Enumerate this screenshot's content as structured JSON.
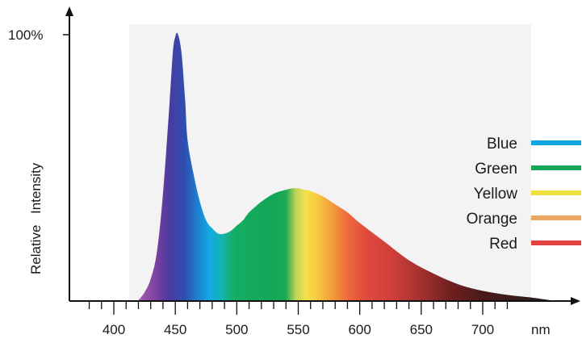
{
  "chart_data": {
    "type": "area",
    "title": "",
    "xlabel": "",
    "ylabel": "Relative Intensity",
    "ylabel_words": [
      "Relative",
      "Intensity"
    ],
    "y_top_label": "100%",
    "x_unit": "nm",
    "xlim": [
      375,
      760
    ],
    "ylim": [
      0,
      100
    ],
    "x_ticks": [
      400,
      450,
      500,
      550,
      600,
      650,
      700
    ],
    "grid": false,
    "legend_placement": "right",
    "series": [
      {
        "x": [
          420,
          425,
          430,
          435,
          440,
          445,
          448,
          450,
          452,
          455,
          458,
          460,
          465,
          470,
          475,
          480,
          485,
          490,
          495,
          500,
          505,
          510,
          520,
          530,
          540,
          545,
          550,
          555,
          560,
          570,
          580,
          590,
          600,
          620,
          640,
          660,
          680,
          700,
          720,
          740,
          755
        ],
        "values": [
          0,
          3,
          8,
          18,
          40,
          72,
          93,
          99,
          100,
          93,
          75,
          60,
          47,
          37,
          30,
          27,
          25,
          25,
          26,
          28,
          30,
          33,
          37,
          40,
          41.5,
          42,
          42,
          41.5,
          41,
          39,
          36,
          33,
          29,
          22,
          15,
          10,
          6,
          3.5,
          2,
          1,
          0
        ]
      }
    ],
    "bands": [
      {
        "name": "Blue",
        "color": "#0ea5e0"
      },
      {
        "name": "Green",
        "color": "#17a55a"
      },
      {
        "name": "Yellow",
        "color": "#f0e040"
      },
      {
        "name": "Orange",
        "color": "#eda860"
      },
      {
        "name": "Red",
        "color": "#e2413f"
      }
    ],
    "spectrum_colors": [
      {
        "nm": 420,
        "color": "#a35fb0"
      },
      {
        "nm": 435,
        "color": "#7a3f9e"
      },
      {
        "nm": 445,
        "color": "#4b3aa0"
      },
      {
        "nm": 458,
        "color": "#2d4fb0"
      },
      {
        "nm": 468,
        "color": "#1e7fd0"
      },
      {
        "nm": 478,
        "color": "#15a9e4"
      },
      {
        "nm": 488,
        "color": "#12b4b0"
      },
      {
        "nm": 498,
        "color": "#15ad62"
      },
      {
        "nm": 530,
        "color": "#12a656"
      },
      {
        "nm": 540,
        "color": "#20aa55"
      },
      {
        "nm": 548,
        "color": "#bed35a"
      },
      {
        "nm": 556,
        "color": "#f4e24a"
      },
      {
        "nm": 566,
        "color": "#f6c640"
      },
      {
        "nm": 578,
        "color": "#f29a3a"
      },
      {
        "nm": 590,
        "color": "#ec6b3c"
      },
      {
        "nm": 605,
        "color": "#e04a3c"
      },
      {
        "nm": 625,
        "color": "#d23f3c"
      },
      {
        "nm": 650,
        "color": "#a2312f"
      },
      {
        "nm": 675,
        "color": "#6e1f1f"
      },
      {
        "nm": 700,
        "color": "#4a1a1a"
      },
      {
        "nm": 740,
        "color": "#2e1c1c"
      }
    ]
  }
}
